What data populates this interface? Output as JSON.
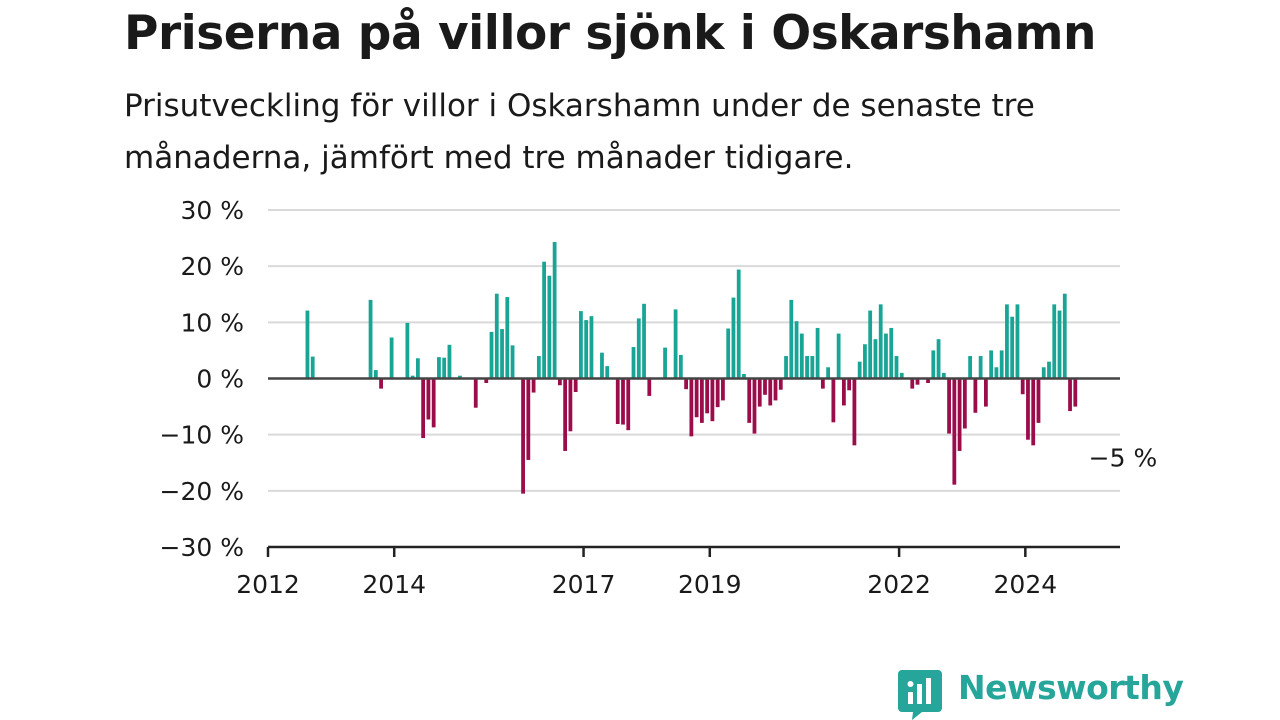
{
  "title": "Priserna på villor sjönk i Oskarshamn",
  "subtitle": "Prisutveckling för villor i Oskarshamn under de senaste tre månaderna, jämfört med tre månader tidigare.",
  "logo": {
    "name": "Newsworthy",
    "icon": "newsworthy-bar-chart-icon"
  },
  "colors": {
    "positive": "#19a595",
    "negative": "#9b0c4a",
    "grid": "#d9d9d9",
    "axis": "#222222"
  },
  "chart_data": {
    "type": "bar",
    "title": "",
    "xlabel": "",
    "ylabel": "",
    "ylim": [
      -30,
      30
    ],
    "yticks": [
      30,
      20,
      10,
      0,
      -10,
      -20,
      -30
    ],
    "ytick_labels": [
      "30 %",
      "20 %",
      "10 %",
      "0 %",
      "−10 %",
      "−20 %",
      "−30 %"
    ],
    "xlim": [
      "2012-01",
      "2025-07"
    ],
    "xticks": [
      {
        "date": "2012-01",
        "label": "2012"
      },
      {
        "date": "2014-01",
        "label": "2014"
      },
      {
        "date": "2017-01",
        "label": "2017"
      },
      {
        "date": "2019-01",
        "label": "2019"
      },
      {
        "date": "2022-01",
        "label": "2022"
      },
      {
        "date": "2024-01",
        "label": "2024"
      }
    ],
    "grid": true,
    "series": [
      {
        "points": [
          {
            "x": "2012-08",
            "y": 12.1
          },
          {
            "x": "2012-09",
            "y": 3.9
          },
          {
            "x": "2013-08",
            "y": 14.0
          },
          {
            "x": "2013-09",
            "y": 1.5
          },
          {
            "x": "2013-10",
            "y": -1.8
          },
          {
            "x": "2013-12",
            "y": 7.3
          },
          {
            "x": "2014-03",
            "y": 9.9
          },
          {
            "x": "2014-04",
            "y": 0.5
          },
          {
            "x": "2014-05",
            "y": 3.6
          },
          {
            "x": "2014-06",
            "y": -10.6
          },
          {
            "x": "2014-07",
            "y": -7.3
          },
          {
            "x": "2014-08",
            "y": -8.7
          },
          {
            "x": "2014-09",
            "y": 3.8
          },
          {
            "x": "2014-10",
            "y": 3.7
          },
          {
            "x": "2014-11",
            "y": 6.0
          },
          {
            "x": "2015-01",
            "y": 0.5
          },
          {
            "x": "2015-04",
            "y": -5.2
          },
          {
            "x": "2015-06",
            "y": -0.8
          },
          {
            "x": "2015-07",
            "y": 8.3
          },
          {
            "x": "2015-08",
            "y": 15.1
          },
          {
            "x": "2015-09",
            "y": 8.8
          },
          {
            "x": "2015-10",
            "y": 14.5
          },
          {
            "x": "2015-11",
            "y": 5.9
          },
          {
            "x": "2016-01",
            "y": -20.5
          },
          {
            "x": "2016-02",
            "y": -14.5
          },
          {
            "x": "2016-03",
            "y": -2.5
          },
          {
            "x": "2016-04",
            "y": 4.0
          },
          {
            "x": "2016-05",
            "y": 20.8
          },
          {
            "x": "2016-06",
            "y": 18.3
          },
          {
            "x": "2016-07",
            "y": 24.3
          },
          {
            "x": "2016-08",
            "y": -1.2
          },
          {
            "x": "2016-09",
            "y": -12.9
          },
          {
            "x": "2016-10",
            "y": -9.4
          },
          {
            "x": "2016-11",
            "y": -2.4
          },
          {
            "x": "2016-12",
            "y": 12.0
          },
          {
            "x": "2017-01",
            "y": 10.4
          },
          {
            "x": "2017-02",
            "y": 11.1
          },
          {
            "x": "2017-04",
            "y": 4.6
          },
          {
            "x": "2017-05",
            "y": 2.2
          },
          {
            "x": "2017-07",
            "y": -8.1
          },
          {
            "x": "2017-08",
            "y": -8.2
          },
          {
            "x": "2017-09",
            "y": -9.2
          },
          {
            "x": "2017-10",
            "y": 5.6
          },
          {
            "x": "2017-11",
            "y": 10.7
          },
          {
            "x": "2017-12",
            "y": 13.3
          },
          {
            "x": "2018-01",
            "y": -3.1
          },
          {
            "x": "2018-04",
            "y": 5.5
          },
          {
            "x": "2018-06",
            "y": 12.3
          },
          {
            "x": "2018-07",
            "y": 4.2
          },
          {
            "x": "2018-08",
            "y": -1.9
          },
          {
            "x": "2018-09",
            "y": -10.3
          },
          {
            "x": "2018-10",
            "y": -6.9
          },
          {
            "x": "2018-11",
            "y": -7.9
          },
          {
            "x": "2018-12",
            "y": -6.2
          },
          {
            "x": "2019-01",
            "y": -7.6
          },
          {
            "x": "2019-02",
            "y": -5.1
          },
          {
            "x": "2019-03",
            "y": -3.9
          },
          {
            "x": "2019-04",
            "y": 8.9
          },
          {
            "x": "2019-05",
            "y": 14.4
          },
          {
            "x": "2019-06",
            "y": 19.4
          },
          {
            "x": "2019-07",
            "y": 0.8
          },
          {
            "x": "2019-08",
            "y": -7.9
          },
          {
            "x": "2019-09",
            "y": -9.8
          },
          {
            "x": "2019-10",
            "y": -5.0
          },
          {
            "x": "2019-11",
            "y": -2.9
          },
          {
            "x": "2019-12",
            "y": -4.8
          },
          {
            "x": "2020-01",
            "y": -3.9
          },
          {
            "x": "2020-02",
            "y": -2.0
          },
          {
            "x": "2020-03",
            "y": 4.0
          },
          {
            "x": "2020-04",
            "y": 14.0
          },
          {
            "x": "2020-05",
            "y": 10.2
          },
          {
            "x": "2020-06",
            "y": 8.0
          },
          {
            "x": "2020-07",
            "y": 4.0
          },
          {
            "x": "2020-08",
            "y": 4.0
          },
          {
            "x": "2020-09",
            "y": 9.0
          },
          {
            "x": "2020-10",
            "y": -1.8
          },
          {
            "x": "2020-11",
            "y": 2.0
          },
          {
            "x": "2020-12",
            "y": -7.8
          },
          {
            "x": "2021-01",
            "y": 8.0
          },
          {
            "x": "2021-02",
            "y": -4.8
          },
          {
            "x": "2021-03",
            "y": -2.1
          },
          {
            "x": "2021-04",
            "y": -11.9
          },
          {
            "x": "2021-05",
            "y": 3.0
          },
          {
            "x": "2021-06",
            "y": 6.1
          },
          {
            "x": "2021-07",
            "y": 12.1
          },
          {
            "x": "2021-08",
            "y": 7.0
          },
          {
            "x": "2021-09",
            "y": 13.2
          },
          {
            "x": "2021-10",
            "y": 8.0
          },
          {
            "x": "2021-11",
            "y": 9.0
          },
          {
            "x": "2021-12",
            "y": 4.0
          },
          {
            "x": "2022-01",
            "y": 1.0
          },
          {
            "x": "2022-03",
            "y": -1.8
          },
          {
            "x": "2022-04",
            "y": -1.1
          },
          {
            "x": "2022-06",
            "y": -0.8
          },
          {
            "x": "2022-07",
            "y": 5.0
          },
          {
            "x": "2022-08",
            "y": 7.0
          },
          {
            "x": "2022-09",
            "y": 1.0
          },
          {
            "x": "2022-10",
            "y": -9.8
          },
          {
            "x": "2022-11",
            "y": -18.9
          },
          {
            "x": "2022-12",
            "y": -12.9
          },
          {
            "x": "2023-01",
            "y": -8.9
          },
          {
            "x": "2023-02",
            "y": 4.0
          },
          {
            "x": "2023-03",
            "y": -6.1
          },
          {
            "x": "2023-04",
            "y": 4.0
          },
          {
            "x": "2023-05",
            "y": -5.0
          },
          {
            "x": "2023-06",
            "y": 5.0
          },
          {
            "x": "2023-07",
            "y": 2.0
          },
          {
            "x": "2023-08",
            "y": 5.0
          },
          {
            "x": "2023-09",
            "y": 13.2
          },
          {
            "x": "2023-10",
            "y": 11.0
          },
          {
            "x": "2023-11",
            "y": 13.2
          },
          {
            "x": "2023-12",
            "y": -2.8
          },
          {
            "x": "2024-01",
            "y": -10.9
          },
          {
            "x": "2024-02",
            "y": -11.9
          },
          {
            "x": "2024-03",
            "y": -7.9
          },
          {
            "x": "2024-04",
            "y": 2.0
          },
          {
            "x": "2024-05",
            "y": 3.0
          },
          {
            "x": "2024-06",
            "y": 13.2
          },
          {
            "x": "2024-07",
            "y": 12.1
          },
          {
            "x": "2024-08",
            "y": 15.1
          },
          {
            "x": "2024-09",
            "y": -5.8
          },
          {
            "x": "2024-10",
            "y": -5.0
          }
        ]
      }
    ],
    "annotations": [
      {
        "x": "2024-10",
        "y": -5.0,
        "text": "−5 %"
      }
    ]
  }
}
